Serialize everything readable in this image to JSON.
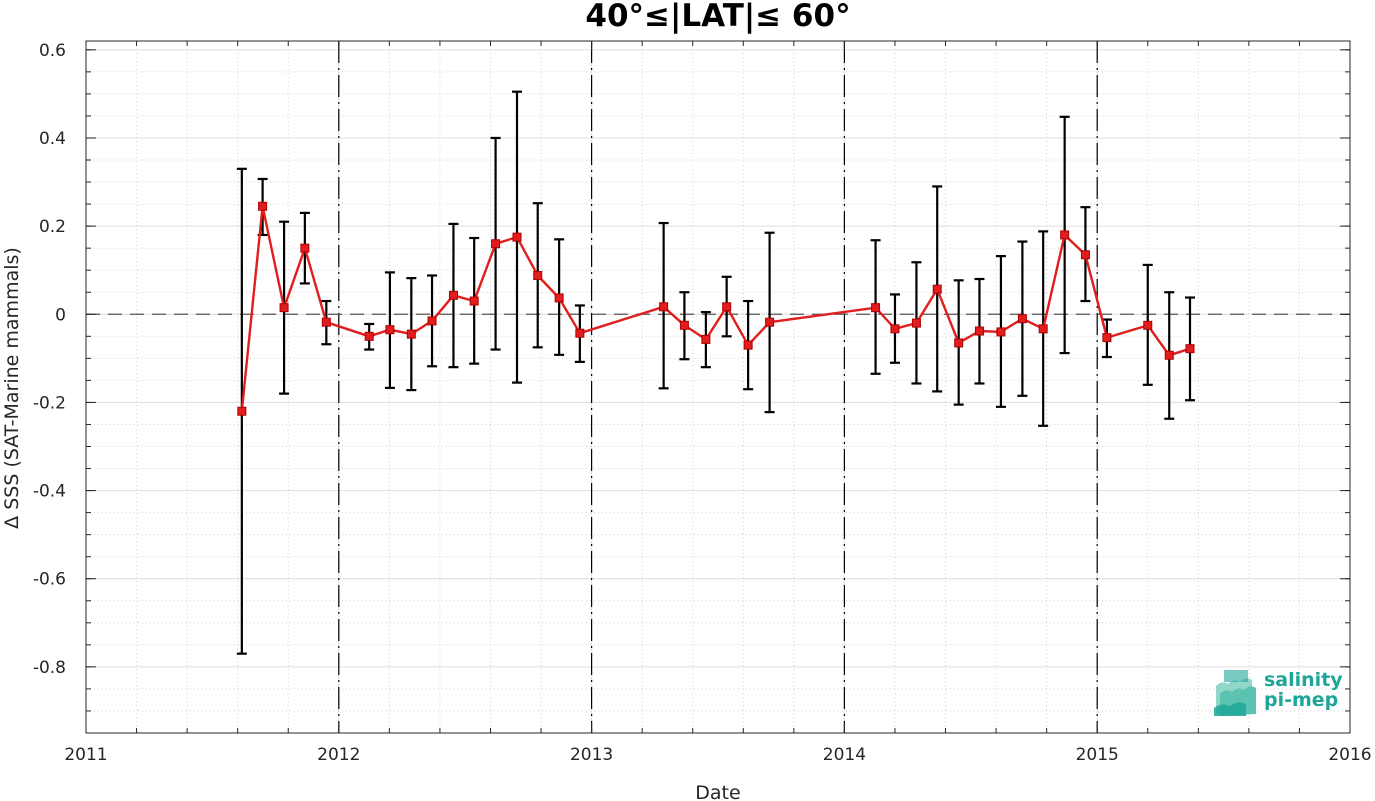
{
  "chart_data": {
    "type": "line",
    "title": "40°≤|LAT|≤ 60°",
    "xlabel": "Date",
    "ylabel": "Δ SSS (SAT-Marine mammals)",
    "xlim": [
      "2011-01-01",
      "2016-01-01"
    ],
    "ylim": [
      -0.95,
      0.62
    ],
    "x_ticks": [
      "2011",
      "2012",
      "2013",
      "2014",
      "2015",
      "2016"
    ],
    "y_ticks": [
      "0.6",
      "0.4",
      "0.2",
      "0",
      "-0.2",
      "-0.4",
      "-0.6",
      "-0.8"
    ],
    "grid": true,
    "reference_line": 0,
    "year_boundaries": [
      "2012-01-01",
      "2013-01-01",
      "2014-01-01",
      "2015-01-01"
    ],
    "series": [
      {
        "color": "#e11d1d",
        "marker": "square",
        "error_bar_color": "#000000",
        "points": [
          {
            "x": "2011-08-14",
            "y": -0.22,
            "lo": -0.77,
            "hi": 0.33
          },
          {
            "x": "2011-09-13",
            "y": 0.245,
            "lo": 0.18,
            "hi": 0.307
          },
          {
            "x": "2011-10-14",
            "y": 0.015,
            "lo": -0.18,
            "hi": 0.21
          },
          {
            "x": "2011-11-13",
            "y": 0.15,
            "lo": 0.07,
            "hi": 0.23
          },
          {
            "x": "2011-12-14",
            "y": -0.018,
            "lo": -0.068,
            "hi": 0.03
          },
          {
            "x": "2012-02-14",
            "y": -0.05,
            "lo": -0.08,
            "hi": -0.022
          },
          {
            "x": "2012-03-15",
            "y": -0.035,
            "lo": -0.167,
            "hi": 0.095
          },
          {
            "x": "2012-04-15",
            "y": -0.045,
            "lo": -0.172,
            "hi": 0.082
          },
          {
            "x": "2012-05-15",
            "y": -0.015,
            "lo": -0.118,
            "hi": 0.088
          },
          {
            "x": "2012-06-15",
            "y": 0.043,
            "lo": -0.12,
            "hi": 0.205
          },
          {
            "x": "2012-07-15",
            "y": 0.03,
            "lo": -0.112,
            "hi": 0.173
          },
          {
            "x": "2012-08-15",
            "y": 0.16,
            "lo": -0.08,
            "hi": 0.4
          },
          {
            "x": "2012-09-15",
            "y": 0.175,
            "lo": -0.155,
            "hi": 0.505
          },
          {
            "x": "2012-10-15",
            "y": 0.088,
            "lo": -0.075,
            "hi": 0.252
          },
          {
            "x": "2012-11-15",
            "y": 0.037,
            "lo": -0.092,
            "hi": 0.17
          },
          {
            "x": "2012-12-15",
            "y": -0.043,
            "lo": -0.108,
            "hi": 0.02
          },
          {
            "x": "2013-04-15",
            "y": 0.017,
            "lo": -0.168,
            "hi": 0.207
          },
          {
            "x": "2013-05-15",
            "y": -0.025,
            "lo": -0.102,
            "hi": 0.05
          },
          {
            "x": "2013-06-15",
            "y": -0.057,
            "lo": -0.12,
            "hi": 0.005
          },
          {
            "x": "2013-07-15",
            "y": 0.017,
            "lo": -0.05,
            "hi": 0.085
          },
          {
            "x": "2013-08-15",
            "y": -0.07,
            "lo": -0.17,
            "hi": 0.03
          },
          {
            "x": "2013-09-15",
            "y": -0.018,
            "lo": -0.222,
            "hi": 0.185
          },
          {
            "x": "2014-02-15",
            "y": 0.015,
            "lo": -0.135,
            "hi": 0.168
          },
          {
            "x": "2014-03-15",
            "y": -0.033,
            "lo": -0.11,
            "hi": 0.045
          },
          {
            "x": "2014-04-15",
            "y": -0.02,
            "lo": -0.157,
            "hi": 0.118
          },
          {
            "x": "2014-05-15",
            "y": 0.057,
            "lo": -0.175,
            "hi": 0.29
          },
          {
            "x": "2014-06-15",
            "y": -0.065,
            "lo": -0.205,
            "hi": 0.077
          },
          {
            "x": "2014-07-15",
            "y": -0.038,
            "lo": -0.157,
            "hi": 0.08
          },
          {
            "x": "2014-08-15",
            "y": -0.04,
            "lo": -0.21,
            "hi": 0.132
          },
          {
            "x": "2014-09-15",
            "y": -0.01,
            "lo": -0.185,
            "hi": 0.165
          },
          {
            "x": "2014-10-15",
            "y": -0.033,
            "lo": -0.253,
            "hi": 0.188
          },
          {
            "x": "2014-11-15",
            "y": 0.18,
            "lo": -0.088,
            "hi": 0.448
          },
          {
            "x": "2014-12-15",
            "y": 0.135,
            "lo": 0.03,
            "hi": 0.243
          },
          {
            "x": "2015-01-15",
            "y": -0.053,
            "lo": -0.097,
            "hi": -0.012
          },
          {
            "x": "2015-03-15",
            "y": -0.025,
            "lo": -0.16,
            "hi": 0.112
          },
          {
            "x": "2015-04-15",
            "y": -0.093,
            "lo": -0.237,
            "hi": 0.05
          },
          {
            "x": "2015-05-15",
            "y": -0.078,
            "lo": -0.195,
            "hi": 0.038
          }
        ]
      }
    ]
  },
  "logo": {
    "line1": "salinity",
    "line2": "pi-mep",
    "colors": [
      "#1ea69a",
      "#8fd8c8",
      "#5cc3b0"
    ]
  }
}
